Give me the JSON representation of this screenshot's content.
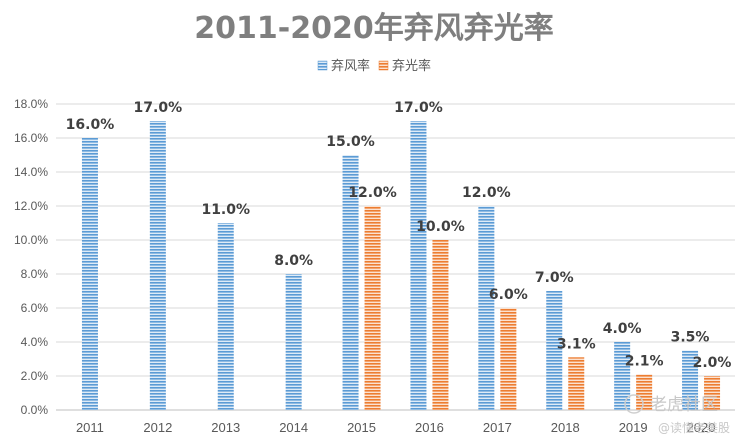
{
  "chart_data": {
    "type": "bar",
    "title": "2011-2020年弃风弃光率",
    "categories": [
      "2011",
      "2012",
      "2013",
      "2014",
      "2015",
      "2016",
      "2017",
      "2018",
      "2019",
      "2020"
    ],
    "series": [
      {
        "name": "弃风率",
        "color": "#5b9bd5",
        "values": [
          16.0,
          17.0,
          11.0,
          8.0,
          15.0,
          17.0,
          12.0,
          7.0,
          4.0,
          3.5
        ],
        "labels": [
          "16.0%",
          "17.0%",
          "11.0%",
          "8.0%",
          "15.0%",
          "17.0%",
          "12.0%",
          "7.0%",
          "4.0%",
          "3.5%"
        ]
      },
      {
        "name": "弃光率",
        "color": "#ed7d31",
        "values": [
          null,
          null,
          null,
          null,
          12.0,
          10.0,
          6.0,
          3.1,
          2.1,
          2.0
        ],
        "labels": [
          "",
          "",
          "",
          "",
          "12.0%",
          "10.0%",
          "6.0%",
          "3.1%",
          "2.1%",
          "2.0%"
        ]
      }
    ],
    "yticks": [
      "0.0%",
      "2.0%",
      "4.0%",
      "6.0%",
      "8.0%",
      "10.0%",
      "12.0%",
      "14.0%",
      "16.0%",
      "18.0%"
    ],
    "ylim": [
      0,
      18
    ],
    "xlabel": "",
    "ylabel": "",
    "grid": true,
    "legend_position": "top-center",
    "bar_pattern": "horizontal-stripes"
  },
  "watermark": {
    "text1": "老虎社区",
    "text2": "@读懂老美股"
  }
}
